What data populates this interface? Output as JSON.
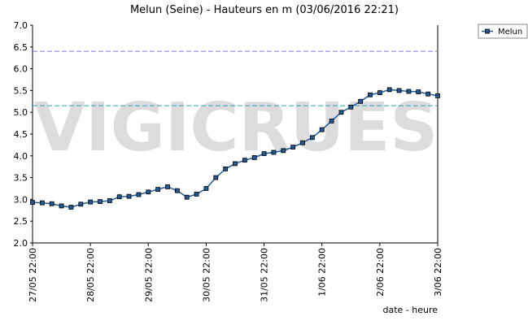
{
  "chart_data": {
    "type": "line",
    "title": "Melun (Seine) - Hauteurs en m (03/06/2016 22:21)",
    "x_label": "date - heure",
    "watermark": "VIGICRUES",
    "x": [
      "27/05 22:00",
      "28/05 02:00",
      "28/05 06:00",
      "28/05 10:00",
      "28/05 14:00",
      "28/05 18:00",
      "28/05 22:00",
      "29/05 02:00",
      "29/05 06:00",
      "29/05 10:00",
      "29/05 14:00",
      "29/05 18:00",
      "29/05 22:00",
      "30/05 02:00",
      "30/05 06:00",
      "30/05 10:00",
      "30/05 14:00",
      "30/05 18:00",
      "30/05 22:00",
      "31/05 02:00",
      "31/05 06:00",
      "31/05 10:00",
      "31/05 14:00",
      "31/05 18:00",
      "31/05 22:00",
      "1/06 02:00",
      "1/06 06:00",
      "1/06 10:00",
      "1/06 14:00",
      "1/06 18:00",
      "1/06 22:00",
      "2/06 02:00",
      "2/06 06:00",
      "2/06 10:00",
      "2/06 14:00",
      "2/06 18:00",
      "2/06 22:00",
      "3/06 02:00",
      "3/06 06:00",
      "3/06 10:00",
      "3/06 14:00",
      "3/06 18:00",
      "3/06 22:00"
    ],
    "series": [
      {
        "name": "Melun",
        "color": "#1f5a96",
        "values": [
          2.93,
          2.92,
          2.9,
          2.85,
          2.82,
          2.89,
          2.94,
          2.95,
          2.97,
          3.06,
          3.07,
          3.11,
          3.17,
          3.23,
          3.29,
          3.2,
          3.05,
          3.12,
          3.25,
          3.5,
          3.7,
          3.82,
          3.9,
          3.96,
          4.05,
          4.08,
          4.12,
          4.2,
          4.3,
          4.42,
          4.6,
          4.8,
          5.0,
          5.12,
          5.25,
          5.4,
          5.45,
          5.52,
          5.5,
          5.48,
          5.47,
          5.42,
          5.38
        ]
      }
    ],
    "xlim": [
      "27/05 22:00",
      "3/06 22:00"
    ],
    "xticks": [
      "27/05 22:00",
      "28/05 22:00",
      "29/05 22:00",
      "30/05 22:00",
      "31/05 22:00",
      "1/06 22:00",
      "2/06 22:00",
      "3/06 22:00"
    ],
    "ylim": [
      2,
      7
    ],
    "yticks": [
      {
        "value": 2,
        "label": "2.0"
      },
      2.5,
      {
        "value": 3,
        "label": "3.0"
      },
      3.5,
      {
        "value": 4,
        "label": "4.0"
      },
      4.5,
      {
        "value": 5,
        "label": "5.0"
      },
      5.5,
      {
        "value": 6,
        "label": "6.0"
      },
      6.5,
      {
        "value": 7,
        "label": "7.0"
      }
    ],
    "reference_lines": [
      {
        "value": 6.4,
        "color": "#7a7ae0"
      },
      {
        "value": 5.15,
        "color": "#2aa0d0"
      }
    ],
    "legend": "top-right"
  }
}
